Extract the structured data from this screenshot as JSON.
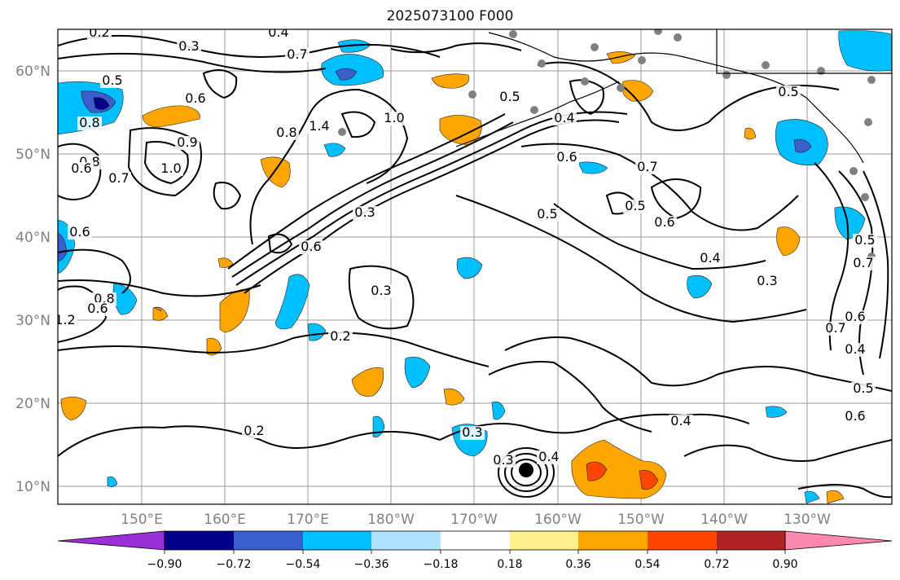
{
  "title": "2025073100 F000",
  "axes": {
    "lat_labels": [
      "60°N",
      "50°N",
      "40°N",
      "30°N",
      "20°N",
      "10°N"
    ],
    "lon_labels": [
      "150°E",
      "160°E",
      "170°E",
      "180°W",
      "170°W",
      "160°W",
      "150°W",
      "140°W",
      "130°W"
    ]
  },
  "colorbar": {
    "ticks": [
      "−0.90",
      "−0.72",
      "−0.54",
      "−0.36",
      "−0.18",
      "0.18",
      "0.36",
      "0.54",
      "0.72",
      "0.90"
    ],
    "colors": [
      "#9b30d9",
      "#00008b",
      "#3a5fcd",
      "#00bfff",
      "#b0e2ff",
      "#ffffff",
      "#fff08c",
      "#ffa500",
      "#ff4500",
      "#b22222",
      "#ff88b0"
    ]
  },
  "contour_labels": [
    {
      "text": "0.2"
    },
    {
      "text": "0.4"
    },
    {
      "text": "0.3"
    },
    {
      "text": "0.7"
    },
    {
      "text": "0.5"
    },
    {
      "text": "0.6"
    },
    {
      "text": "0.8"
    },
    {
      "text": "1.0"
    },
    {
      "text": "1.4"
    },
    {
      "text": "0.9"
    },
    {
      "text": "0.8"
    },
    {
      "text": "0.7"
    },
    {
      "text": "1.0"
    },
    {
      "text": "0.6"
    },
    {
      "text": "0.3"
    },
    {
      "text": "0.6"
    },
    {
      "text": "0.5"
    },
    {
      "text": "0.4"
    },
    {
      "text": "0.3"
    },
    {
      "text": "0.2"
    },
    {
      "text": "0.2"
    },
    {
      "text": "0.3"
    },
    {
      "text": "0.4"
    },
    {
      "text": "0.3"
    },
    {
      "text": "0.5"
    },
    {
      "text": "0.5"
    },
    {
      "text": "0.6"
    },
    {
      "text": "0.7"
    },
    {
      "text": "0.5"
    },
    {
      "text": "0.6"
    },
    {
      "text": "0.4"
    },
    {
      "text": "0.4"
    },
    {
      "text": "0.3"
    },
    {
      "text": "0.6"
    },
    {
      "text": "0.7"
    },
    {
      "text": "0.4"
    },
    {
      "text": "0.5"
    },
    {
      "text": "0.6"
    },
    {
      "text": "0.5"
    },
    {
      "text": "0.7"
    },
    {
      "text": "0.8"
    },
    {
      "text": "0.6"
    },
    {
      "text": "1.2"
    },
    {
      "text": "0.8"
    },
    {
      "text": "0.6"
    }
  ]
}
